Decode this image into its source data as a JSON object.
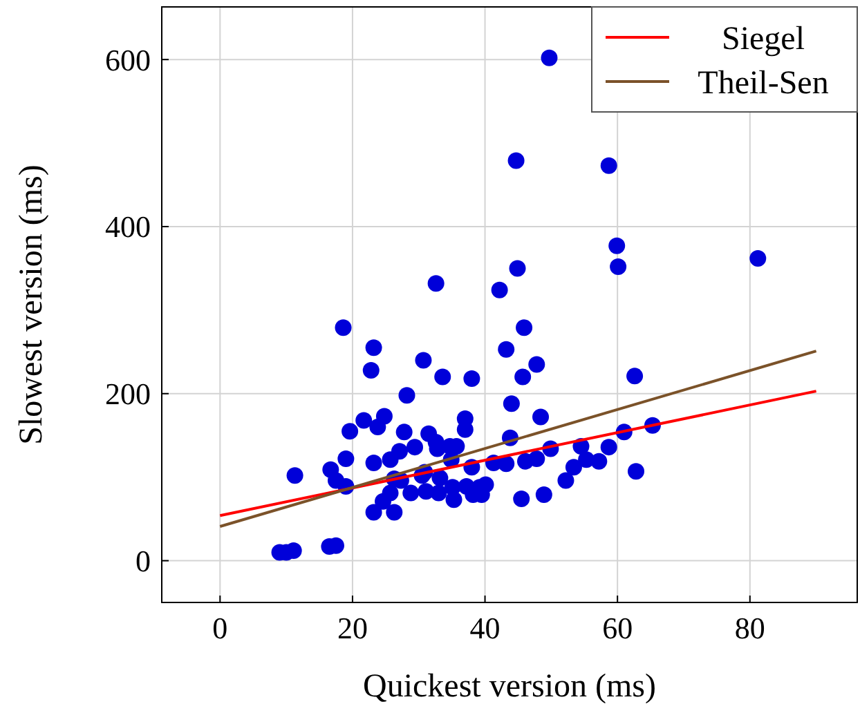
{
  "chart_data": {
    "type": "scatter",
    "xlabel": "Quickest version (ms)",
    "ylabel": "Slowest version (ms)",
    "xlim": [
      -8.8,
      96.2
    ],
    "ylim": [
      -50,
      663
    ],
    "xticks": [
      0,
      20,
      40,
      60,
      80
    ],
    "yticks": [
      0,
      200,
      400,
      600
    ],
    "grid": true,
    "legend": "top right",
    "series": [
      {
        "marker": "circle",
        "color": "#0000d9",
        "x": [
          9,
          10,
          11.1,
          16.5,
          17.5,
          11.3,
          16.7,
          17.5,
          19,
          19,
          18.6,
          23.2,
          22.8,
          30.7,
          33.6,
          38,
          28.2,
          19.6,
          21.7,
          23.8,
          24.8,
          23.2,
          25.7,
          27.1,
          27.8,
          29.4,
          31.5,
          32.6,
          32.8,
          34.7,
          35.7,
          37,
          37,
          34.9,
          38,
          26.3,
          27.3,
          30.5,
          30.9,
          28.8,
          31.1,
          33,
          33.2,
          35.1,
          35.3,
          37.2,
          38.2,
          39.2,
          24.6,
          23.2,
          26.3,
          25.7,
          45.9,
          43.2,
          47.8,
          45.7,
          62.6,
          44,
          48.4,
          43.8,
          49.9,
          54.5,
          58.7,
          61,
          65.3,
          41.3,
          43.2,
          46.1,
          47.8,
          53.4,
          55.3,
          57.2,
          52.2,
          62.8,
          40.1,
          39.5,
          45.5,
          48.9,
          49.7,
          44.7,
          58.7,
          59.9,
          60.1,
          44.9,
          81.2,
          32.6,
          42.2
        ],
        "values": [
          10,
          10,
          12,
          17,
          18,
          102,
          109,
          96,
          89,
          122,
          279,
          255,
          228,
          240,
          220,
          218,
          198,
          155,
          168,
          160,
          173,
          117,
          121,
          131,
          154,
          136,
          152,
          142,
          134,
          137,
          137,
          170,
          157,
          121,
          112,
          98,
          96,
          102,
          106,
          81,
          83,
          81,
          99,
          88,
          73,
          89,
          79,
          88,
          71,
          58,
          58,
          81,
          279,
          253,
          235,
          220,
          221,
          188,
          172,
          147,
          134,
          137,
          136,
          154,
          162,
          117,
          116,
          119,
          122,
          112,
          121,
          119,
          96,
          107,
          91,
          79,
          74,
          79,
          602,
          479,
          473,
          377,
          352,
          350,
          362,
          332,
          324
        ]
      },
      {
        "type": "line",
        "name": "Siegel",
        "color": "#ff0000",
        "x": [
          0,
          90
        ],
        "values": [
          54,
          203
        ]
      },
      {
        "type": "line",
        "name": "Theil-Sen",
        "color": "#7b5229",
        "x": [
          0,
          90
        ],
        "values": [
          41,
          251
        ]
      }
    ]
  }
}
